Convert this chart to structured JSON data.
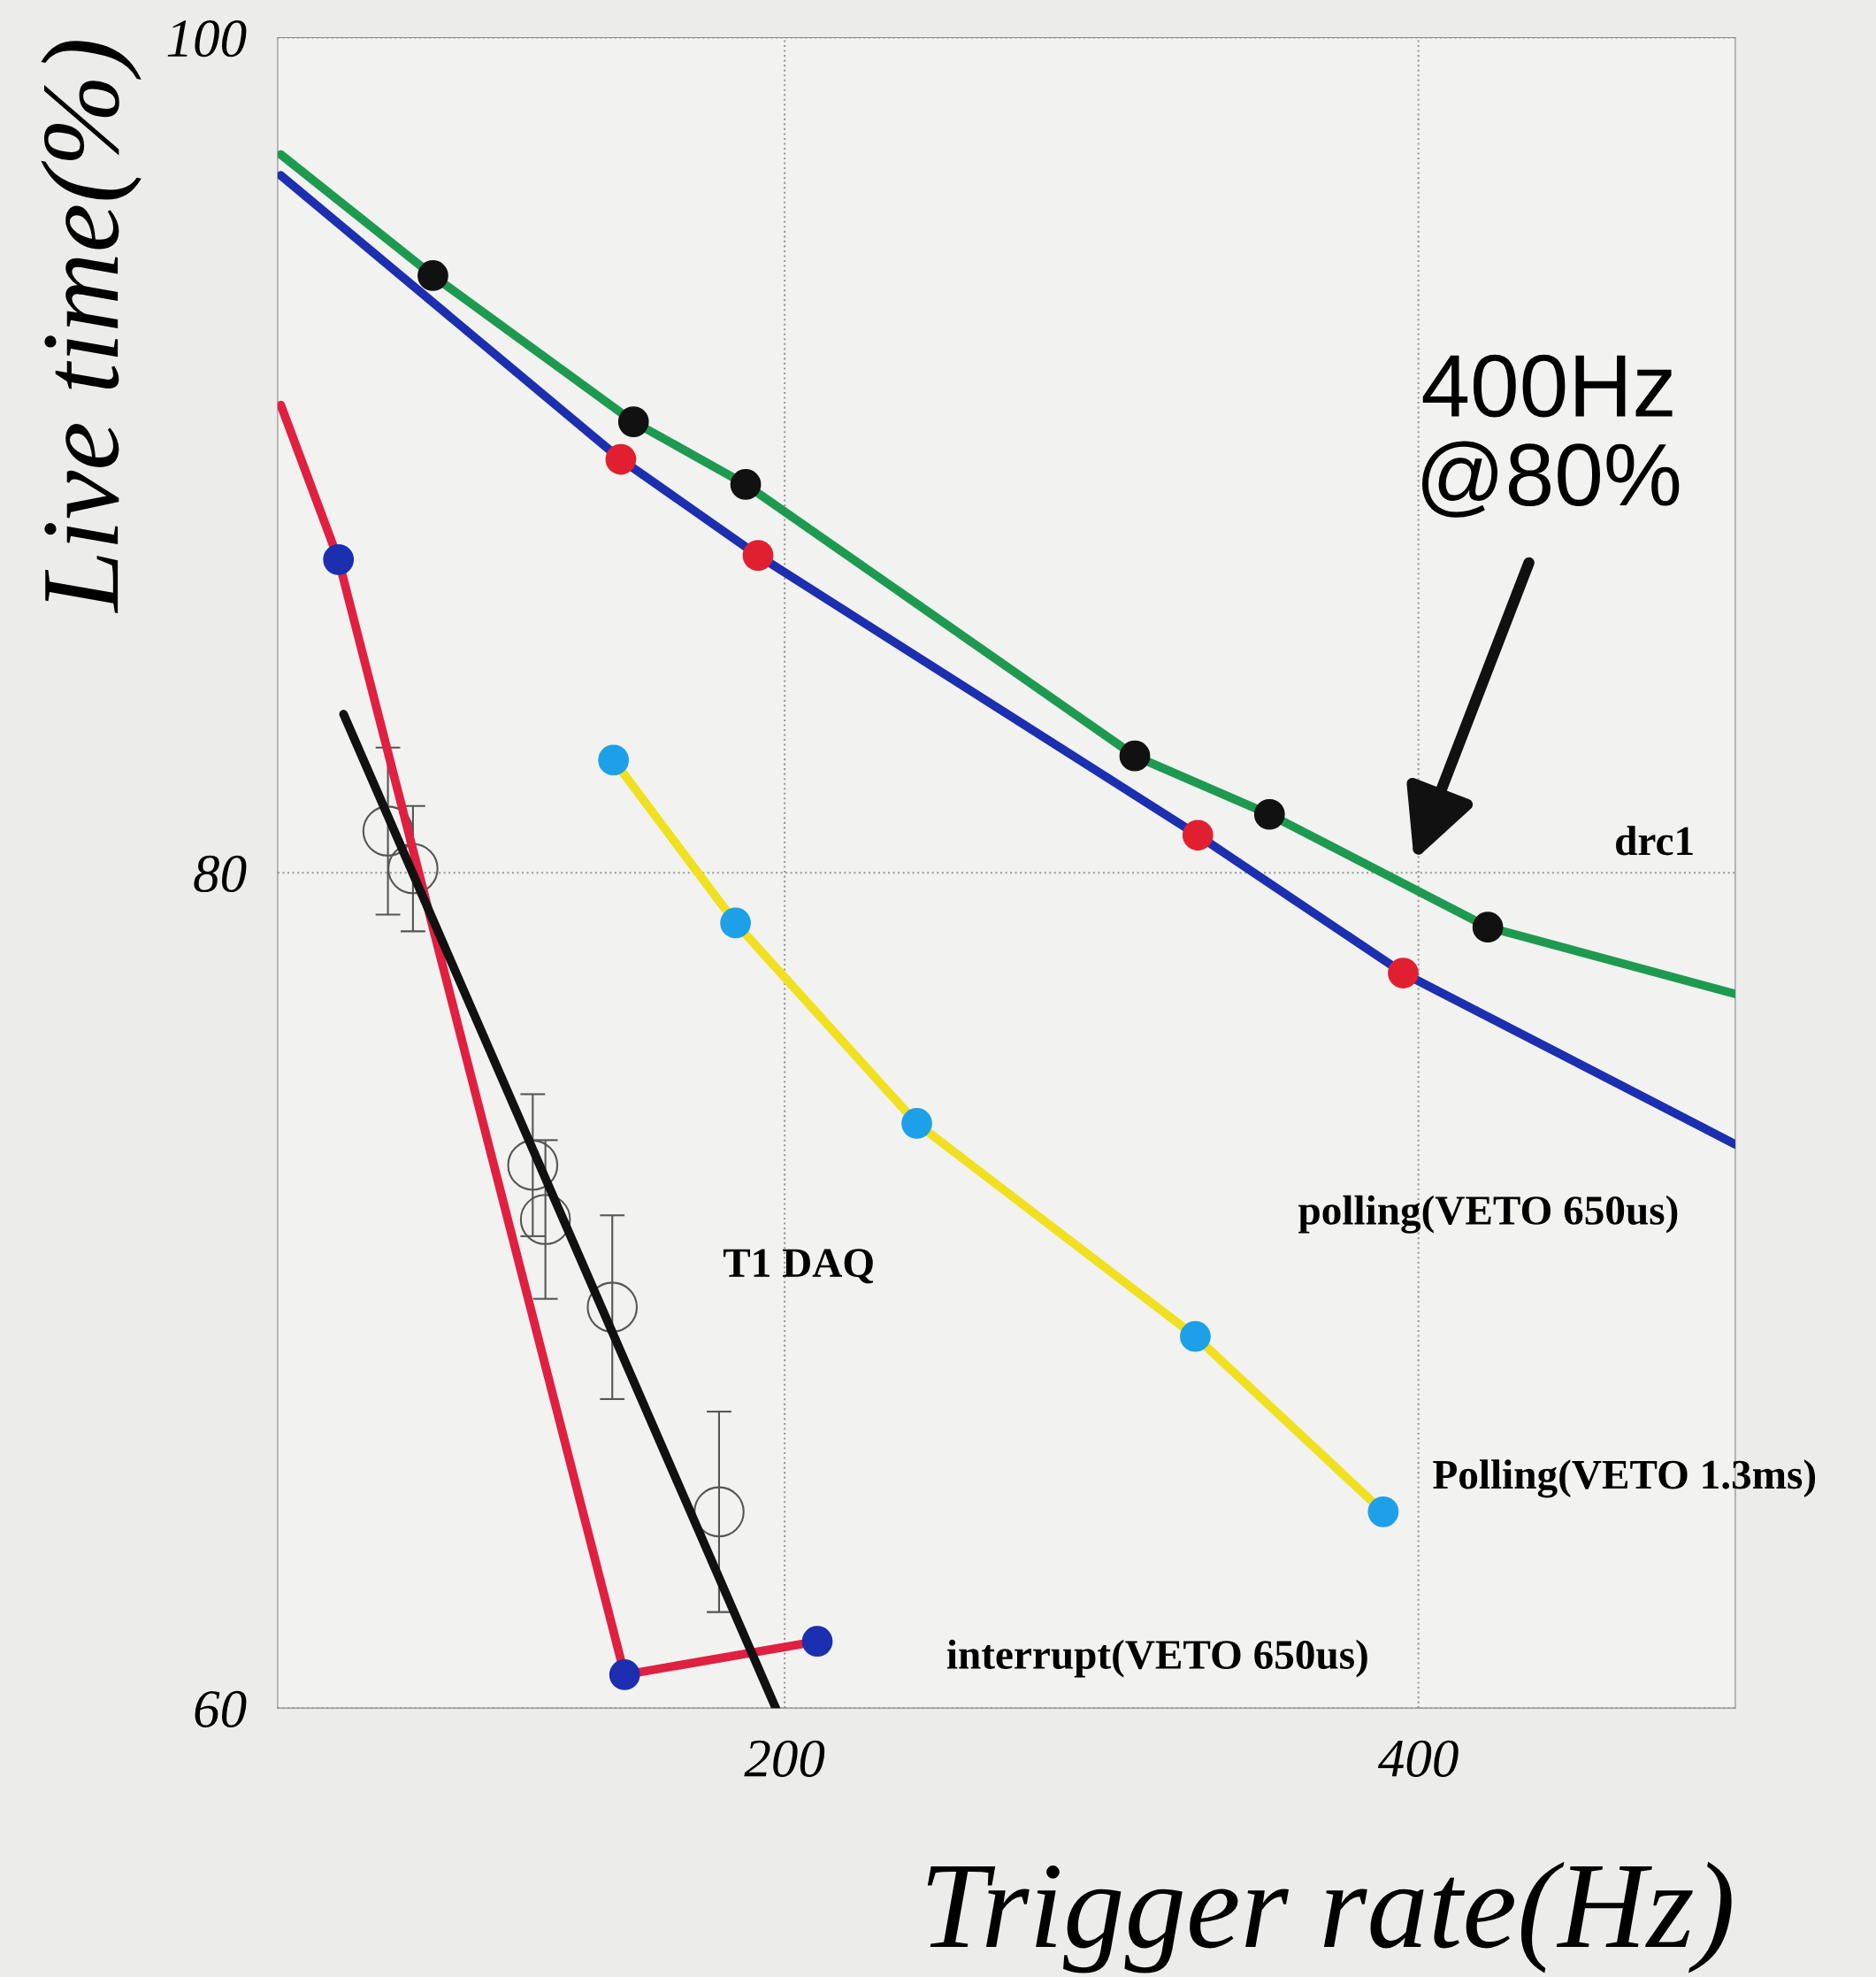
{
  "chart_data": {
    "type": "line",
    "xlabel": "Trigger rate(Hz)",
    "ylabel": "Live time(%)",
    "xlim": [
      40,
      500
    ],
    "ylim": [
      60,
      100
    ],
    "xticks": [
      200,
      400
    ],
    "yticks": [
      60,
      80,
      100
    ],
    "grid": true,
    "line_style": "solid",
    "series": [
      {
        "name": "drc1",
        "marker": "circle",
        "color": "#1e9a50",
        "x": [
          41,
          89,
          152.3,
          187.7,
          310.5,
          353,
          421.9,
          500
        ],
        "values": [
          97.2,
          94.3,
          90.8,
          89.3,
          82.8,
          81.4,
          78.7,
          77.1
        ],
        "colors": [
          null,
          "#111111",
          "#111111",
          "#111111",
          "#111111",
          "#111111",
          "#111111",
          null
        ]
      },
      {
        "name": "polling(VETO 650us)",
        "marker": "circle",
        "color": "#1c2fb0",
        "x": [
          41,
          148.3,
          191.6,
          330.4,
          395.2,
          500
        ],
        "values": [
          96.7,
          89.9,
          87.6,
          80.9,
          77.6,
          73.5
        ],
        "colors": [
          null,
          "#e02030",
          "#e02030",
          "#e02030",
          "#e02030",
          null
        ]
      },
      {
        "name": "Polling(VETO 1.3ms)",
        "marker": "circle",
        "color": "#f0e020",
        "x": [
          146,
          184.5,
          241.7,
          329.6,
          388.9
        ],
        "values": [
          82.7,
          78.8,
          74.0,
          68.9,
          64.7
        ],
        "colors": [
          "#1ea0e8",
          "#1ea0e8",
          "#1ea0e8",
          "#1ea0e8",
          "#1ea0e8"
        ]
      },
      {
        "name": "interrupt(VETO 650us)",
        "marker": "circle",
        "color": "#e02040",
        "x": [
          41,
          59.2,
          149.5,
          210.3
        ],
        "values": [
          91.2,
          87.5,
          60.8,
          61.6
        ],
        "colors": [
          null,
          "#1c2fb0",
          "#1c2fb0",
          "#1c2fb0"
        ]
      },
      {
        "name": "T1 DAQ",
        "type": "scatter",
        "color": "#555555",
        "marker": "circle",
        "x": [
          74.8,
          82.7,
          120.5,
          124.5,
          145.6,
          179.3
        ],
        "values": [
          81.0,
          80.1,
          73.0,
          71.7,
          69.6,
          64.7
        ],
        "errors": [
          2.0,
          1.5,
          1.7,
          1.9,
          2.2,
          2.4
        ]
      },
      {
        "color": "#111111",
        "x": [
          60.8,
          197.2
        ],
        "values": [
          83.8,
          60.0
        ]
      }
    ],
    "annotations": [
      "400Hz\n@80%"
    ]
  }
}
